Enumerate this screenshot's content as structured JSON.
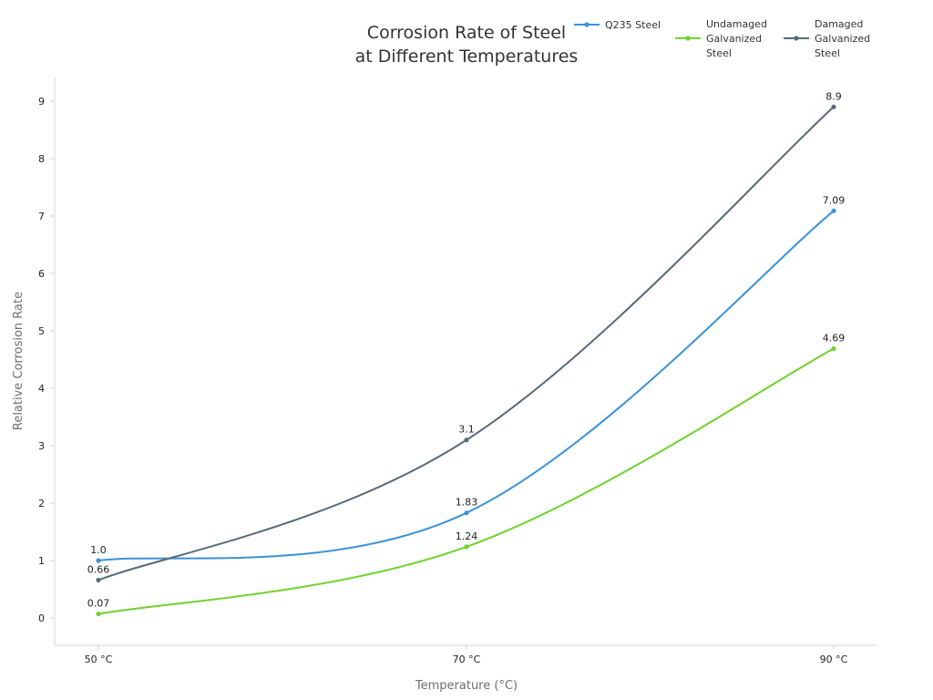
{
  "chart_data": {
    "type": "line",
    "title_lines": [
      "Corrosion Rate of Steel",
      "at Different Temperatures"
    ],
    "xlabel": "Temperature (°C)",
    "ylabel": "Relative Corrosion Rate",
    "categories": [
      "50 °C",
      "70 °C",
      "90 °C"
    ],
    "ylim": [
      -0.5,
      9.4
    ],
    "yticks": [
      "0",
      "1",
      "2",
      "3",
      "4",
      "5",
      "6",
      "7",
      "8",
      "9"
    ],
    "grid": false,
    "legend_position": "top-right",
    "series": [
      {
        "name": "Q235 Steel",
        "name_lines": [
          "Q235 Steel"
        ],
        "color": "#3b92d9",
        "values": [
          1.0,
          1.83,
          7.09
        ],
        "labels": [
          "1.0",
          "1.83",
          "7.09"
        ]
      },
      {
        "name": "Undamaged Galvanized Steel",
        "name_lines": [
          "Undamaged",
          "Galvanized",
          "Steel"
        ],
        "color": "#6fd22e",
        "values": [
          0.07,
          1.24,
          4.69
        ],
        "labels": [
          "0.07",
          "1.24",
          "4.69"
        ]
      },
      {
        "name": "Damaged Galvanized Steel",
        "name_lines": [
          "Damaged",
          "Galvanized",
          "Steel"
        ],
        "color": "#566b75",
        "values": [
          0.66,
          3.1,
          8.9
        ],
        "labels": [
          "0.66",
          "3.1",
          "8.9"
        ]
      }
    ]
  }
}
